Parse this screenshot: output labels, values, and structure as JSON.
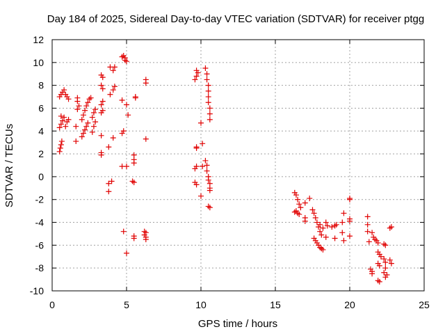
{
  "chart_data": {
    "type": "scatter",
    "title": "Day 184 of 2025, Sidereal Day-to-day VTEC variation (SDTVAR) for receiver ptgg",
    "xlabel": "GPS time / hours",
    "ylabel": "SDTVAR / TECUs",
    "xlim": [
      0,
      25
    ],
    "ylim": [
      -10,
      12
    ],
    "xticks": [
      0,
      5,
      10,
      15,
      20,
      25
    ],
    "yticks": [
      -10,
      -8,
      -6,
      -4,
      -2,
      0,
      2,
      4,
      6,
      8,
      10,
      12
    ],
    "grid": true,
    "marker": "+",
    "color": "#e00000",
    "series": [
      {
        "name": "SDTVAR",
        "points": [
          [
            0.5,
            2.2
          ],
          [
            0.55,
            2.5
          ],
          [
            0.6,
            2.8
          ],
          [
            0.65,
            3.1
          ],
          [
            0.5,
            4.3
          ],
          [
            0.6,
            4.6
          ],
          [
            0.7,
            4.9
          ],
          [
            0.8,
            5.2
          ],
          [
            0.6,
            5.3
          ],
          [
            0.5,
            7.0
          ],
          [
            0.6,
            7.2
          ],
          [
            0.7,
            7.4
          ],
          [
            0.8,
            7.6
          ],
          [
            0.9,
            7.2
          ],
          [
            1.0,
            7.0
          ],
          [
            1.1,
            6.8
          ],
          [
            0.9,
            4.4
          ],
          [
            1.0,
            4.8
          ],
          [
            1.1,
            5.0
          ],
          [
            1.6,
            3.1
          ],
          [
            1.6,
            4.4
          ],
          [
            1.7,
            5.9
          ],
          [
            1.7,
            6.6
          ],
          [
            1.7,
            6.9
          ],
          [
            1.8,
            6.2
          ],
          [
            2.0,
            3.5
          ],
          [
            2.1,
            3.8
          ],
          [
            2.2,
            4.1
          ],
          [
            2.3,
            4.4
          ],
          [
            2.4,
            4.7
          ],
          [
            2.0,
            5.0
          ],
          [
            2.1,
            5.4
          ],
          [
            2.2,
            5.8
          ],
          [
            2.3,
            6.2
          ],
          [
            2.4,
            6.5
          ],
          [
            2.5,
            6.8
          ],
          [
            2.6,
            6.9
          ],
          [
            2.7,
            3.9
          ],
          [
            2.8,
            4.4
          ],
          [
            2.9,
            4.8
          ],
          [
            2.7,
            5.2
          ],
          [
            2.8,
            5.6
          ],
          [
            2.9,
            5.9
          ],
          [
            3.3,
            1.9
          ],
          [
            3.3,
            2.1
          ],
          [
            3.3,
            3.6
          ],
          [
            3.3,
            5.6
          ],
          [
            3.4,
            5.8
          ],
          [
            3.3,
            6.3
          ],
          [
            3.4,
            6.6
          ],
          [
            3.4,
            7.7
          ],
          [
            3.3,
            8.0
          ],
          [
            3.4,
            8.7
          ],
          [
            3.3,
            8.9
          ],
          [
            3.8,
            -1.3
          ],
          [
            3.8,
            -0.6
          ],
          [
            3.8,
            2.6
          ],
          [
            3.9,
            7.2
          ],
          [
            4.0,
            -0.4
          ],
          [
            4.1,
            3.4
          ],
          [
            4.1,
            7.6
          ],
          [
            4.2,
            7.9
          ],
          [
            4.1,
            9.3
          ],
          [
            4.2,
            9.6
          ],
          [
            3.9,
            9.6
          ],
          [
            4.7,
            10.5
          ],
          [
            4.8,
            10.6
          ],
          [
            4.9,
            10.4
          ],
          [
            4.9,
            10.2
          ],
          [
            5.0,
            10.1
          ],
          [
            4.7,
            6.7
          ],
          [
            5.0,
            6.3
          ],
          [
            5.1,
            5.4
          ],
          [
            4.8,
            4.0
          ],
          [
            4.7,
            3.8
          ],
          [
            4.7,
            0.9
          ],
          [
            5.0,
            0.9
          ],
          [
            4.8,
            -4.8
          ],
          [
            5.0,
            -6.7
          ],
          [
            5.4,
            -0.4
          ],
          [
            5.5,
            -0.5
          ],
          [
            5.5,
            1.2
          ],
          [
            5.5,
            1.5
          ],
          [
            5.5,
            1.9
          ],
          [
            5.6,
            6.9
          ],
          [
            5.6,
            7.0
          ],
          [
            5.5,
            -5.2
          ],
          [
            5.5,
            -5.4
          ],
          [
            6.3,
            3.3
          ],
          [
            6.3,
            8.2
          ],
          [
            6.3,
            8.5
          ],
          [
            6.2,
            -4.8
          ],
          [
            6.3,
            -4.9
          ],
          [
            6.2,
            -5.1
          ],
          [
            6.3,
            -5.3
          ],
          [
            6.3,
            -5.5
          ],
          [
            9.6,
            8.5
          ],
          [
            9.7,
            8.8
          ],
          [
            9.8,
            9.1
          ],
          [
            9.7,
            9.3
          ],
          [
            9.7,
            2.5
          ],
          [
            9.7,
            2.6
          ],
          [
            9.7,
            0.9
          ],
          [
            9.6,
            0.7
          ],
          [
            9.6,
            -0.5
          ],
          [
            9.7,
            -0.7
          ],
          [
            10.0,
            4.7
          ],
          [
            10.1,
            2.9
          ],
          [
            10.1,
            0.9
          ],
          [
            10.0,
            -1.7
          ],
          [
            10.3,
            9.5
          ],
          [
            10.4,
            9.0
          ],
          [
            10.4,
            8.5
          ],
          [
            10.5,
            8.0
          ],
          [
            10.5,
            7.5
          ],
          [
            10.5,
            7.0
          ],
          [
            10.5,
            6.5
          ],
          [
            10.6,
            6.0
          ],
          [
            10.6,
            5.5
          ],
          [
            10.6,
            5.0
          ],
          [
            10.3,
            1.4
          ],
          [
            10.4,
            1.0
          ],
          [
            10.4,
            0.5
          ],
          [
            10.5,
            0.0
          ],
          [
            10.5,
            -0.3
          ],
          [
            10.6,
            -0.6
          ],
          [
            10.6,
            -1.0
          ],
          [
            10.6,
            -1.2
          ],
          [
            10.5,
            -2.6
          ],
          [
            10.6,
            -2.7
          ],
          [
            16.3,
            -1.4
          ],
          [
            16.4,
            -1.6
          ],
          [
            16.5,
            -2.0
          ],
          [
            16.6,
            -2.4
          ],
          [
            16.7,
            -2.7
          ],
          [
            16.4,
            -3.0
          ],
          [
            16.5,
            -3.2
          ],
          [
            16.6,
            -3.3
          ],
          [
            16.3,
            -3.1
          ],
          [
            17.0,
            -3.6
          ],
          [
            17.0,
            -3.9
          ],
          [
            17.0,
            -2.3
          ],
          [
            17.3,
            -1.9
          ],
          [
            17.5,
            -2.9
          ],
          [
            17.6,
            -3.2
          ],
          [
            17.7,
            -3.6
          ],
          [
            17.8,
            -4.0
          ],
          [
            17.9,
            -4.4
          ],
          [
            18.0,
            -4.8
          ],
          [
            18.1,
            -5.1
          ],
          [
            18.0,
            -4.2
          ],
          [
            18.2,
            -4.5
          ],
          [
            17.6,
            -5.4
          ],
          [
            17.7,
            -5.6
          ],
          [
            17.8,
            -5.8
          ],
          [
            17.9,
            -6.0
          ],
          [
            18.0,
            -6.2
          ],
          [
            18.1,
            -6.3
          ],
          [
            18.2,
            -6.4
          ],
          [
            18.4,
            -4.0
          ],
          [
            18.5,
            -4.3
          ],
          [
            18.4,
            -5.3
          ],
          [
            18.8,
            -4.4
          ],
          [
            19.0,
            -4.3
          ],
          [
            19.1,
            -4.2
          ],
          [
            19.0,
            -5.4
          ],
          [
            19.6,
            -3.2
          ],
          [
            19.5,
            -4.0
          ],
          [
            19.5,
            -4.9
          ],
          [
            19.6,
            -5.6
          ],
          [
            20.0,
            -1.9
          ],
          [
            20.0,
            -2.0
          ],
          [
            20.0,
            -3.7
          ],
          [
            20.0,
            -3.9
          ],
          [
            20.0,
            -5.2
          ],
          [
            21.2,
            -3.5
          ],
          [
            21.2,
            -4.2
          ],
          [
            21.2,
            -4.8
          ],
          [
            21.3,
            -5.7
          ],
          [
            21.4,
            -8.1
          ],
          [
            21.5,
            -8.3
          ],
          [
            21.5,
            -8.5
          ],
          [
            21.5,
            -4.9
          ],
          [
            21.6,
            -5.3
          ],
          [
            21.7,
            -5.5
          ],
          [
            21.8,
            -5.6
          ],
          [
            21.9,
            -5.8
          ],
          [
            21.9,
            -6.6
          ],
          [
            22.0,
            -6.8
          ],
          [
            22.1,
            -7.0
          ],
          [
            21.9,
            -7.6
          ],
          [
            22.0,
            -7.8
          ],
          [
            21.9,
            -9.1
          ],
          [
            22.0,
            -9.2
          ],
          [
            22.3,
            -5.9
          ],
          [
            22.4,
            -6.0
          ],
          [
            22.3,
            -7.2
          ],
          [
            22.4,
            -7.5
          ],
          [
            22.4,
            -8.0
          ],
          [
            22.3,
            -8.4
          ],
          [
            22.5,
            -8.6
          ],
          [
            22.4,
            -8.8
          ],
          [
            22.7,
            -4.5
          ],
          [
            22.8,
            -4.4
          ],
          [
            22.7,
            -7.3
          ],
          [
            22.8,
            -7.6
          ]
        ]
      }
    ]
  }
}
